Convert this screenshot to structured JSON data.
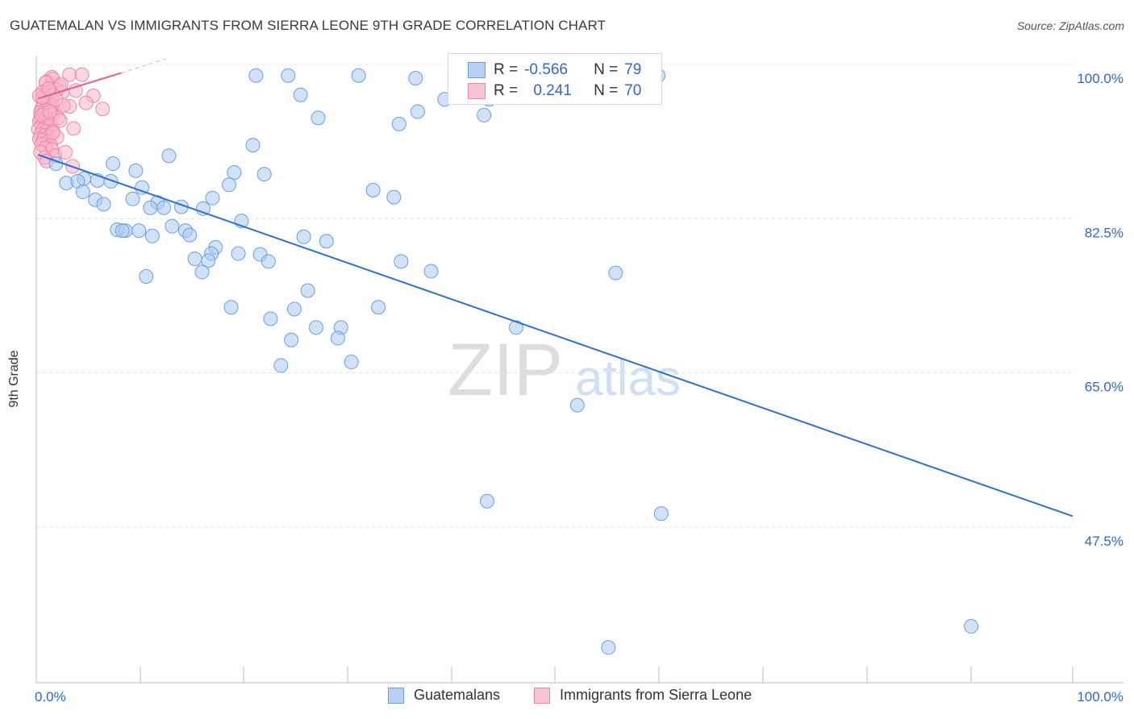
{
  "title": "GUATEMALAN VS IMMIGRANTS FROM SIERRA LEONE 9TH GRADE CORRELATION CHART",
  "source": "Source: ZipAtlas.com",
  "watermark": {
    "zip": "ZIP",
    "atlas": "atlas"
  },
  "colors": {
    "blue_fill": "#a9c8f2",
    "blue_stroke": "#6d9fe0",
    "blue_line": "#2f6fd6",
    "pink_fill": "#f7b6cb",
    "pink_stroke": "#ef86a8",
    "pink_line": "#e85c8b",
    "axis_text": "#3366cc"
  },
  "legend_top": {
    "rows": [
      {
        "r_label": "R =",
        "r_value": "-0.566",
        "n_label": "N =",
        "n_value": "79"
      },
      {
        "r_label": "R =",
        "r_value": "0.241",
        "n_label": "N =",
        "n_value": "70"
      }
    ]
  },
  "legend_bottom": {
    "items": [
      {
        "label": "Guatemalans"
      },
      {
        "label": "Immigrants from Sierra Leone"
      }
    ]
  },
  "chart_data": {
    "type": "scatter",
    "title": "GUATEMALAN VS IMMIGRANTS FROM SIERRA LEONE 9TH GRADE CORRELATION CHART",
    "xlabel": "",
    "ylabel": "9th Grade",
    "xlim": [
      0,
      100
    ],
    "ylim": [
      32,
      101.5
    ],
    "x_tick_labels": [
      "0.0%",
      "100.0%"
    ],
    "y_ticks": [
      {
        "value": 100.0,
        "label": "100.0%"
      },
      {
        "value": 82.5,
        "label": "82.5%"
      },
      {
        "value": 65.0,
        "label": "65.0%"
      },
      {
        "value": 47.5,
        "label": "47.5%"
      }
    ],
    "grid": "horizontal dashed",
    "legend_position": "top-center",
    "series": [
      {
        "name": "Guatemalans",
        "r": -0.566,
        "n": 79,
        "trend": {
          "x": [
            0.2,
            100
          ],
          "y": [
            91.3,
            50.3
          ]
        },
        "points": [
          [
            21.2,
            100.3
          ],
          [
            24.3,
            100.3
          ],
          [
            31.1,
            100.3
          ],
          [
            60.0,
            100.3
          ],
          [
            36.6,
            100.0
          ],
          [
            25.5,
            98.1
          ],
          [
            41.5,
            98.7
          ],
          [
            43.2,
            95.8
          ],
          [
            43.7,
            97.6
          ],
          [
            12.8,
            91.2
          ],
          [
            1.9,
            90.3
          ],
          [
            7.4,
            90.3
          ],
          [
            9.6,
            89.5
          ],
          [
            19.1,
            89.3
          ],
          [
            22.0,
            89.1
          ],
          [
            2.9,
            88.1
          ],
          [
            4.6,
            88.6
          ],
          [
            4.0,
            88.3
          ],
          [
            5.9,
            88.4
          ],
          [
            7.2,
            88.3
          ],
          [
            18.6,
            87.9
          ],
          [
            10.2,
            87.6
          ],
          [
            32.5,
            87.3
          ],
          [
            4.5,
            87.1
          ],
          [
            34.5,
            86.5
          ],
          [
            9.3,
            86.3
          ],
          [
            5.7,
            86.2
          ],
          [
            11.7,
            85.9
          ],
          [
            6.5,
            85.7
          ],
          [
            12.3,
            85.3
          ],
          [
            11.0,
            85.3
          ],
          [
            14.0,
            85.4
          ],
          [
            16.1,
            85.2
          ],
          [
            19.8,
            83.8
          ],
          [
            13.1,
            83.2
          ],
          [
            7.8,
            82.8
          ],
          [
            8.6,
            82.7
          ],
          [
            8.3,
            82.7
          ],
          [
            9.9,
            82.7
          ],
          [
            14.4,
            82.7
          ],
          [
            11.2,
            82.1
          ],
          [
            14.8,
            82.2
          ],
          [
            25.8,
            82.0
          ],
          [
            28.0,
            81.5
          ],
          [
            17.3,
            80.8
          ],
          [
            16.9,
            80.1
          ],
          [
            19.5,
            80.1
          ],
          [
            21.6,
            80.0
          ],
          [
            15.3,
            79.5
          ],
          [
            16.6,
            79.3
          ],
          [
            22.4,
            79.2
          ],
          [
            35.2,
            79.2
          ],
          [
            38.1,
            78.1
          ],
          [
            55.9,
            77.9
          ],
          [
            10.6,
            77.5
          ],
          [
            16.0,
            78.0
          ],
          [
            26.2,
            75.9
          ],
          [
            18.8,
            74.0
          ],
          [
            33.0,
            74.0
          ],
          [
            24.9,
            73.8
          ],
          [
            22.6,
            72.7
          ],
          [
            27.0,
            71.7
          ],
          [
            29.4,
            71.7
          ],
          [
            46.3,
            71.7
          ],
          [
            24.6,
            70.3
          ],
          [
            29.1,
            70.5
          ],
          [
            23.6,
            67.4
          ],
          [
            30.4,
            67.8
          ],
          [
            52.2,
            62.9
          ],
          [
            43.5,
            52.0
          ],
          [
            60.3,
            50.6
          ],
          [
            90.2,
            37.8
          ],
          [
            55.2,
            35.4
          ],
          [
            39.4,
            97.6
          ],
          [
            35.0,
            94.8
          ],
          [
            20.9,
            92.4
          ],
          [
            27.2,
            95.5
          ],
          [
            36.8,
            96.2
          ],
          [
            17.0,
            86.4
          ]
        ]
      },
      {
        "name": "Immigrants from Sierra Leone",
        "r": 0.241,
        "n": 70,
        "trend": {
          "x": [
            0.2,
            8.2
          ],
          "y": [
            97.7,
            100.6
          ]
        },
        "trend_ext": {
          "x": [
            8.2,
            12.5
          ],
          "y": [
            100.6,
            102.2
          ]
        },
        "points": [
          [
            3.2,
            100.4
          ],
          [
            4.4,
            100.4
          ],
          [
            1.5,
            100.1
          ],
          [
            1.0,
            99.6
          ],
          [
            1.6,
            99.9
          ],
          [
            2.2,
            99.1
          ],
          [
            0.9,
            99.5
          ],
          [
            2.0,
            98.7
          ],
          [
            3.8,
            98.6
          ],
          [
            1.4,
            98.5
          ],
          [
            0.6,
            98.4
          ],
          [
            0.3,
            98.0
          ],
          [
            1.6,
            98.1
          ],
          [
            2.5,
            98.4
          ],
          [
            5.5,
            98.0
          ],
          [
            0.8,
            97.6
          ],
          [
            1.1,
            97.3
          ],
          [
            0.7,
            97.1
          ],
          [
            1.3,
            96.7
          ],
          [
            1.6,
            96.9
          ],
          [
            3.2,
            96.8
          ],
          [
            0.5,
            96.5
          ],
          [
            0.9,
            96.4
          ],
          [
            6.4,
            96.5
          ],
          [
            0.4,
            96.1
          ],
          [
            0.8,
            96.0
          ],
          [
            1.2,
            95.8
          ],
          [
            1.5,
            95.9
          ],
          [
            1.8,
            96.1
          ],
          [
            0.4,
            95.4
          ],
          [
            0.9,
            95.5
          ],
          [
            2.1,
            95.5
          ],
          [
            0.3,
            95.1
          ],
          [
            0.7,
            95.0
          ],
          [
            1.1,
            94.9
          ],
          [
            0.5,
            94.6
          ],
          [
            0.9,
            94.5
          ],
          [
            1.4,
            94.7
          ],
          [
            0.2,
            94.2
          ],
          [
            0.6,
            94.1
          ],
          [
            1.0,
            94.0
          ],
          [
            1.6,
            94.0
          ],
          [
            0.4,
            93.6
          ],
          [
            0.8,
            93.5
          ],
          [
            1.2,
            93.4
          ],
          [
            2.0,
            93.3
          ],
          [
            0.3,
            93.1
          ],
          [
            0.7,
            93.0
          ],
          [
            1.1,
            92.8
          ],
          [
            0.5,
            92.5
          ],
          [
            1.4,
            92.4
          ],
          [
            0.9,
            92.1
          ],
          [
            1.5,
            91.9
          ],
          [
            0.4,
            91.6
          ],
          [
            1.8,
            91.2
          ],
          [
            0.8,
            91.0
          ],
          [
            3.6,
            94.3
          ],
          [
            2.6,
            96.9
          ],
          [
            1.9,
            97.6
          ],
          [
            0.6,
            97.8
          ],
          [
            1.2,
            98.8
          ],
          [
            2.4,
            99.3
          ],
          [
            4.8,
            97.2
          ],
          [
            1.0,
            90.6
          ],
          [
            2.8,
            91.6
          ],
          [
            3.5,
            90.0
          ],
          [
            1.6,
            93.8
          ],
          [
            0.5,
            95.8
          ],
          [
            2.3,
            95.2
          ],
          [
            1.3,
            96.2
          ]
        ]
      }
    ]
  }
}
